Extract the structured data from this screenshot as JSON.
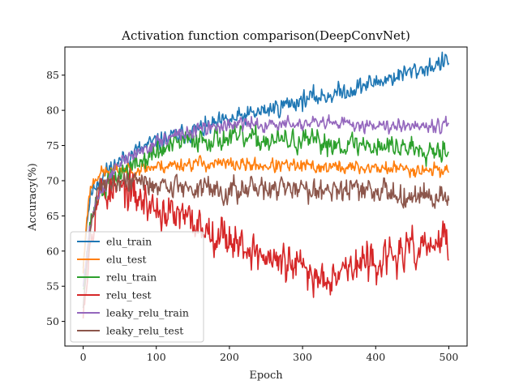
{
  "chart_data": {
    "type": "line",
    "title": "Activation function comparison(DeepConvNet)",
    "xlabel": "Epoch",
    "ylabel": "Accuracy(%)",
    "xlim": [
      -25,
      525
    ],
    "ylim": [
      46.5,
      89
    ],
    "x_ticks": [
      0,
      100,
      200,
      300,
      400,
      500
    ],
    "y_ticks": [
      50,
      55,
      60,
      65,
      70,
      75,
      80,
      85
    ],
    "grid": false,
    "legend_position": "lower-left",
    "n_points": 501,
    "series": [
      {
        "name": "elu_train",
        "color": "#1f77b4",
        "anchors": [
          [
            0,
            58
          ],
          [
            5,
            64
          ],
          [
            10,
            68
          ],
          [
            20,
            70
          ],
          [
            40,
            72
          ],
          [
            60,
            73.5
          ],
          [
            80,
            74.5
          ],
          [
            100,
            75.5
          ],
          [
            150,
            77
          ],
          [
            200,
            78.5
          ],
          [
            250,
            80
          ],
          [
            300,
            81.5
          ],
          [
            350,
            82.5
          ],
          [
            400,
            84
          ],
          [
            450,
            85.5
          ],
          [
            500,
            87
          ]
        ],
        "noise": 1.2,
        "seed": 11
      },
      {
        "name": "elu_test",
        "color": "#ff7f0e",
        "anchors": [
          [
            0,
            57
          ],
          [
            5,
            65
          ],
          [
            10,
            69
          ],
          [
            20,
            71
          ],
          [
            50,
            71.5
          ],
          [
            100,
            72
          ],
          [
            150,
            72.5
          ],
          [
            200,
            72.3
          ],
          [
            300,
            72
          ],
          [
            400,
            71.8
          ],
          [
            500,
            71.5
          ]
        ],
        "noise": 0.9,
        "seed": 23
      },
      {
        "name": "relu_train",
        "color": "#2ca02c",
        "anchors": [
          [
            0,
            55
          ],
          [
            10,
            64
          ],
          [
            20,
            68
          ],
          [
            50,
            71
          ],
          [
            100,
            74
          ],
          [
            150,
            76
          ],
          [
            200,
            76
          ],
          [
            300,
            75.5
          ],
          [
            400,
            75
          ],
          [
            500,
            74.5
          ]
        ],
        "noise": 1.5,
        "seed": 37
      },
      {
        "name": "relu_test",
        "color": "#d62728",
        "anchors": [
          [
            0,
            52
          ],
          [
            5,
            56
          ],
          [
            10,
            62
          ],
          [
            20,
            68
          ],
          [
            50,
            69
          ],
          [
            100,
            66
          ],
          [
            150,
            64
          ],
          [
            200,
            62
          ],
          [
            250,
            59
          ],
          [
            300,
            57.5
          ],
          [
            320,
            56
          ],
          [
            350,
            57.5
          ],
          [
            400,
            58.5
          ],
          [
            450,
            60
          ],
          [
            500,
            61.5
          ]
        ],
        "noise": 2.4,
        "seed": 53
      },
      {
        "name": "leaky_relu_train",
        "color": "#9467bd",
        "anchors": [
          [
            0,
            55
          ],
          [
            10,
            64
          ],
          [
            20,
            68
          ],
          [
            50,
            72.5
          ],
          [
            100,
            75.5
          ],
          [
            150,
            77
          ],
          [
            200,
            78
          ],
          [
            300,
            78
          ],
          [
            400,
            78
          ],
          [
            500,
            78
          ]
        ],
        "noise": 0.9,
        "seed": 71
      },
      {
        "name": "leaky_relu_test",
        "color": "#8c564b",
        "anchors": [
          [
            0,
            52
          ],
          [
            10,
            63
          ],
          [
            20,
            69
          ],
          [
            50,
            70
          ],
          [
            100,
            69.5
          ],
          [
            150,
            69
          ],
          [
            200,
            68.5
          ],
          [
            300,
            69
          ],
          [
            400,
            68.5
          ],
          [
            500,
            67.5
          ]
        ],
        "noise": 1.5,
        "seed": 89
      }
    ]
  }
}
